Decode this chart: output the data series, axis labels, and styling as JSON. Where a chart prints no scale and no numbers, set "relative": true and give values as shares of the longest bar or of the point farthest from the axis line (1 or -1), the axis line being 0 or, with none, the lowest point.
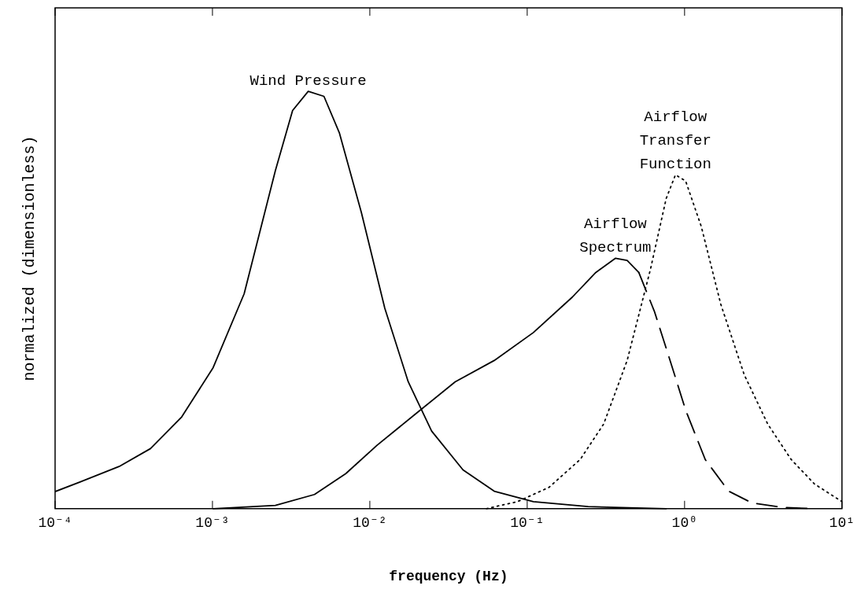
{
  "chart_data": {
    "type": "line",
    "relative": true,
    "log": "x",
    "xlabel": "frequency (Hz)",
    "ylabel": "normalized (dimensionless)",
    "xlim": [
      0.0001,
      10
    ],
    "xticks": [
      {
        "value": 0.0001,
        "label": "10⁻⁴"
      },
      {
        "value": 0.001,
        "label": "10⁻³"
      },
      {
        "value": 0.01,
        "label": "10⁻²"
      },
      {
        "value": 0.1,
        "label": "10⁻¹"
      },
      {
        "value": 1,
        "label": "10⁰"
      },
      {
        "value": 10,
        "label": "10¹"
      }
    ],
    "grid": false,
    "legend": false,
    "marker": "none",
    "series": [
      {
        "name": "Wind Pressure",
        "color": "#000000",
        "line_style": "solid",
        "x": [
          0.0001,
          0.000144,
          0.000255,
          0.000404,
          0.000638,
          0.00101,
          0.00159,
          0.00251,
          0.00323,
          0.00406,
          0.00511,
          0.00641,
          0.00883,
          0.01245,
          0.01754,
          0.0247,
          0.0391,
          0.0617,
          0.1094,
          0.2438,
          0.764
        ],
        "values": [
          0.041,
          0.064,
          0.101,
          0.144,
          0.22,
          0.338,
          0.515,
          0.81,
          0.954,
          1.0,
          0.988,
          0.9,
          0.71,
          0.48,
          0.304,
          0.186,
          0.093,
          0.042,
          0.017,
          0.005,
          0
        ]
      },
      {
        "name": "Airflow\nSpectrum",
        "color": "#000000",
        "line_style": "solid",
        "x": [
          0.00101,
          0.00251,
          0.00445,
          0.00703,
          0.01112,
          0.01968,
          0.03487,
          0.0617,
          0.1094,
          0.1936,
          0.2729,
          0.3631,
          0.4315,
          0.5117
        ],
        "values": [
          0,
          0.008,
          0.034,
          0.084,
          0.152,
          0.228,
          0.304,
          0.355,
          0.422,
          0.507,
          0.566,
          0.6,
          0.595,
          0.566
        ]
      },
      {
        "color": "#000000",
        "line_style": "dashed",
        "x": [
          0.5117,
          0.6427,
          0.8091,
          1.016,
          1.352,
          1.905,
          2.685,
          4.246,
          6.699
        ],
        "values": [
          0.566,
          0.473,
          0.355,
          0.236,
          0.118,
          0.042,
          0.0135,
          0.003,
          0
        ]
      },
      {
        "name": "Airflow\nTransfer\nFunction",
        "color": "#000000",
        "line_style": "dotted",
        "x": [
          0.0551,
          0.0869,
          0.1374,
          0.2173,
          0.3062,
          0.4315,
          0.6073,
          0.7638,
          0.875,
          1.016,
          1.277,
          1.698,
          2.393,
          3.373,
          4.753,
          6.699,
          10
        ],
        "values": [
          0,
          0.017,
          0.051,
          0.118,
          0.203,
          0.355,
          0.574,
          0.743,
          0.8,
          0.785,
          0.676,
          0.49,
          0.321,
          0.203,
          0.118,
          0.059,
          0.017
        ]
      }
    ]
  }
}
